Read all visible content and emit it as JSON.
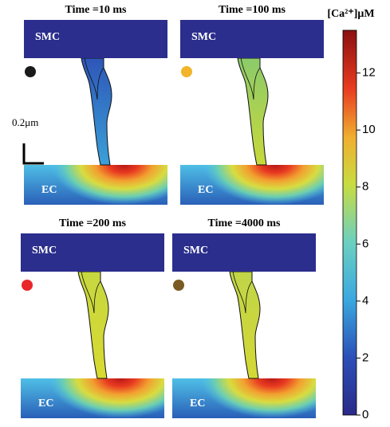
{
  "panels": [
    {
      "title": "Time =10 ms",
      "top_label": "SMC",
      "bottom_label": "EC",
      "dot_color": "#1a1a1a",
      "spine_color": "#2e56b8",
      "spine_tip_color": "#3aa0d8",
      "hot_x": 125
    },
    {
      "title": "Time =100 ms",
      "top_label": "SMC",
      "bottom_label": "EC",
      "dot_color": "#f2b42a",
      "spine_color": "#8ccb6a",
      "spine_tip_color": "#c8d83a",
      "hot_x": 119
    },
    {
      "title": "Time =200 ms",
      "top_label": "SMC",
      "bottom_label": "EC",
      "dot_color": "#e8262a",
      "spine_color": "#c6d840",
      "spine_tip_color": "#d8da30",
      "hot_x": 125
    },
    {
      "title": "Time =4000 ms",
      "top_label": "SMC",
      "bottom_label": "EC",
      "dot_color": "#7a5a20",
      "spine_color": "#c0d548",
      "spine_tip_color": "#d4d835",
      "hot_x": 125
    }
  ],
  "scale_bar": "0.2μm",
  "colorbar": {
    "label": "[Ca²⁺]μM",
    "lim": [
      0,
      13.5
    ],
    "ticks": [
      0,
      2,
      4,
      6,
      8,
      10,
      12
    ]
  }
}
